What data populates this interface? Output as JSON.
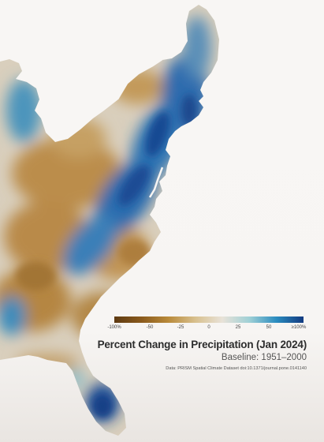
{
  "map": {
    "title": "Percent Change in Precipitation (Jan 2024)",
    "subtitle": "Baseline: 1951–2000",
    "source": "Data: PRISM Spatial Climate Dataset doi:10.1371/journal.pone.0141140"
  },
  "legend": {
    "labels": [
      "-100%",
      "-50",
      "-25",
      "0",
      "25",
      "50",
      "≥100%"
    ],
    "colors": [
      "#5e3a12",
      "#8a5a1c",
      "#b98a3a",
      "#d8c08e",
      "#e8e2d8",
      "#9fd0d6",
      "#2b8cbf",
      "#123a80"
    ]
  },
  "colors": {
    "background": "#f7f5f3",
    "land_neutral": "#d8d2c6",
    "dry": "#b58a4a",
    "wet": "#2a6fb0",
    "very_wet": "#16418a"
  }
}
